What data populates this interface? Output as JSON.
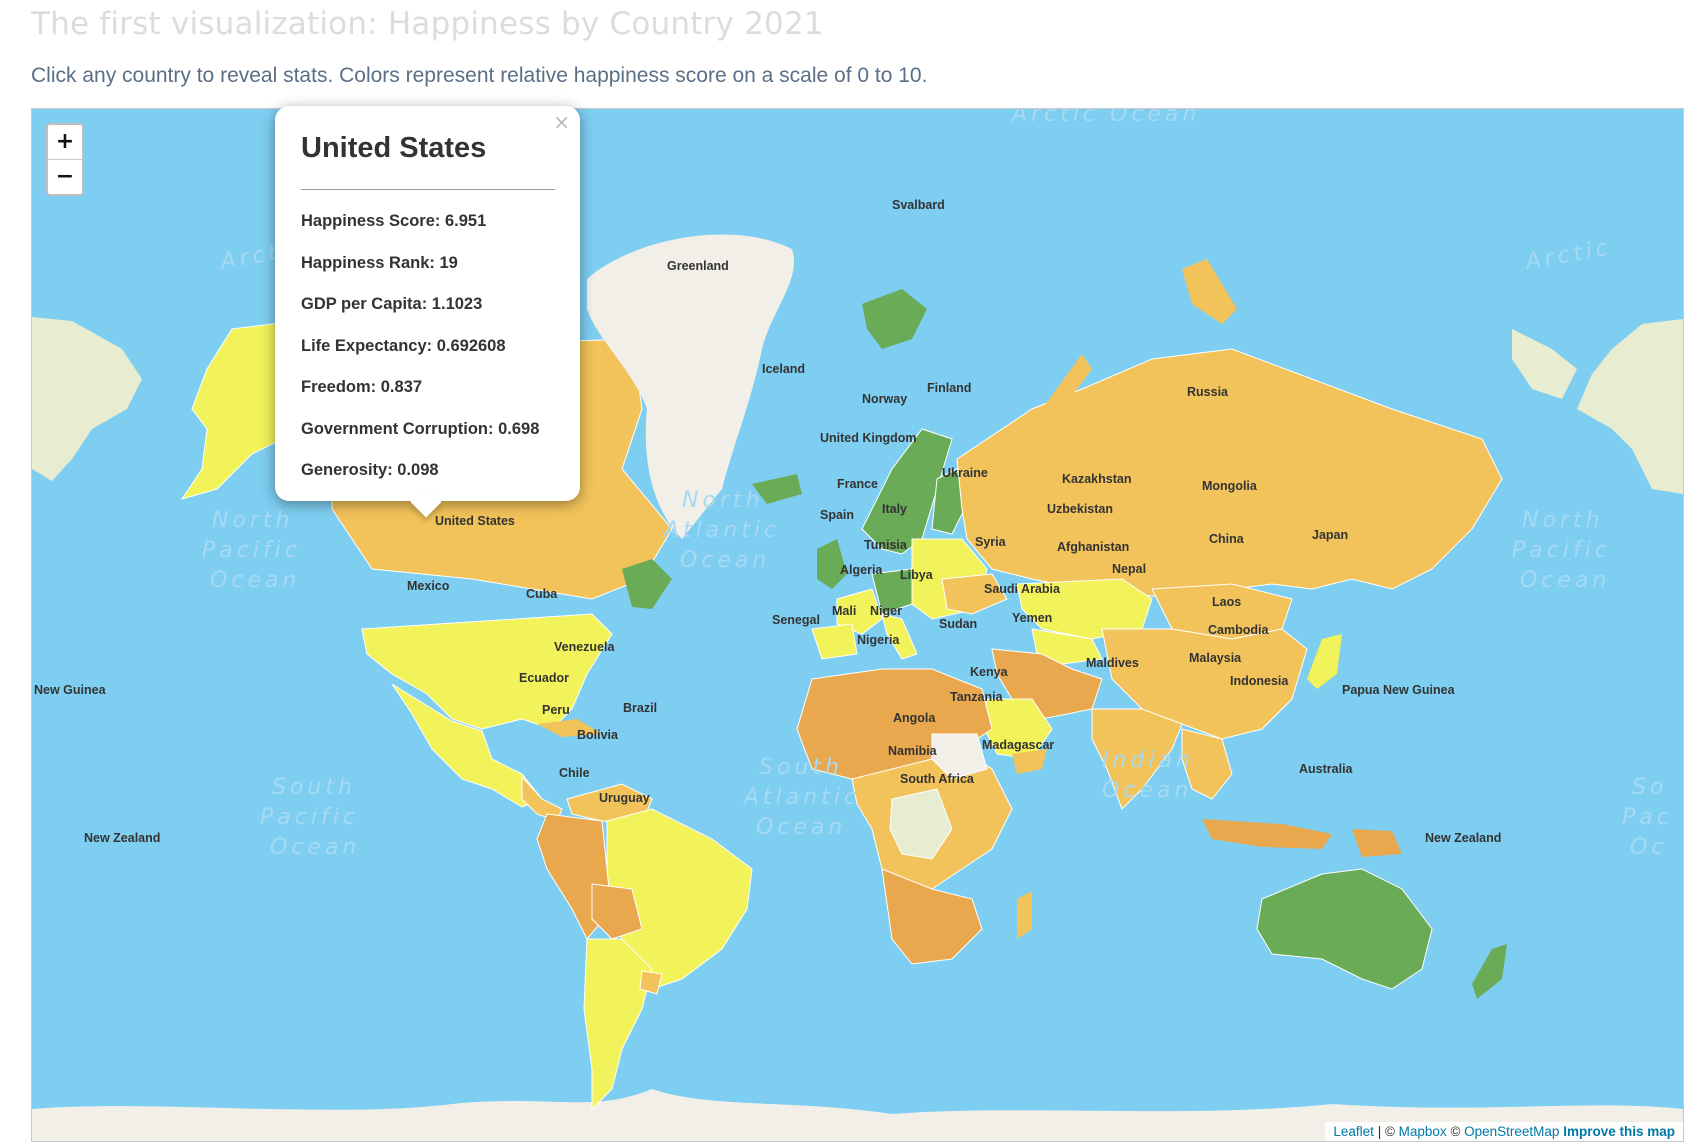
{
  "header": {
    "title": "The first visualization: Happiness by Country 2021",
    "subtitle": "Click any country to reveal stats. Colors represent relative happiness score on a scale of 0 to 10."
  },
  "map": {
    "zoom_in": "+",
    "zoom_out": "−",
    "colors": {
      "ocean": "#7ecef1",
      "highest": "#6aab57",
      "high": "#f2f25a",
      "upper_mid": "#d7e85d",
      "mid": "#f1c35a",
      "low": "#eaa84e",
      "no_data": "#f2efe9",
      "pale": "#e8ecd0"
    },
    "ocean_labels": {
      "arctic_top": "Arctic Ocean",
      "arctic_left": "Arctic",
      "arctic_right": "Arctic",
      "north_pacific_left": [
        "North",
        "Pacific",
        "Ocean"
      ],
      "north_pacific_right": [
        "North",
        "Pacific",
        "Ocean"
      ],
      "north_atlantic": [
        "North",
        "Atlantic",
        "Ocean"
      ],
      "south_pacific": [
        "South",
        "Pacific",
        "Ocean"
      ],
      "south_pacific_right": [
        "So",
        "Pac",
        "Oc"
      ],
      "south_atlantic": [
        "South",
        "Atlantic",
        "Ocean"
      ],
      "indian": [
        "Indian",
        "Ocean"
      ]
    },
    "country_labels": {
      "greenland": "Greenland",
      "svalbard": "Svalbard",
      "iceland": "Iceland",
      "norway": "Norway",
      "finland": "Finland",
      "united_kingdom": "United Kingdom",
      "france": "France",
      "spain": "Spain",
      "italy": "Italy",
      "ukraine": "Ukraine",
      "russia": "Russia",
      "kazakhstan": "Kazakhstan",
      "uzbekistan": "Uzbekistan",
      "mongolia": "Mongolia",
      "china": "China",
      "japan": "Japan",
      "afghanistan": "Afghanistan",
      "nepal": "Nepal",
      "syria": "Syria",
      "saudi_arabia": "Saudi Arabia",
      "yemen": "Yemen",
      "tunisia": "Tunisia",
      "algeria": "Algeria",
      "libya": "Libya",
      "mali": "Mali",
      "niger": "Niger",
      "senegal": "Senegal",
      "nigeria": "Nigeria",
      "sudan": "Sudan",
      "kenya": "Kenya",
      "tanzania": "Tanzania",
      "angola": "Angola",
      "namibia": "Namibia",
      "south_africa": "South Africa",
      "madagascar": "Madagascar",
      "maldives": "Maldives",
      "laos": "Laos",
      "cambodia": "Cambodia",
      "malaysia": "Malaysia",
      "indonesia": "Indonesia",
      "papua_new_guinea": "Papua New Guinea",
      "australia": "Australia",
      "new_zealand_left": "New Zealand",
      "new_zealand_right": "New Zealand",
      "new_guinea_edge": "New Guinea",
      "united_states": "United States",
      "mexico": "Mexico",
      "cuba": "Cuba",
      "venezuela": "Venezuela",
      "ecuador": "Ecuador",
      "peru": "Peru",
      "brazil": "Brazil",
      "bolivia": "Bolivia",
      "chile": "Chile",
      "uruguay": "Uruguay"
    }
  },
  "popup": {
    "close": "×",
    "country": "United States",
    "stats": [
      "Happiness Score: 6.951",
      "Happiness Rank: 19",
      "GDP per Capita: 1.1023",
      "Life Expectancy: 0.692608",
      "Freedom: 0.837",
      "Government Corruption: 0.698",
      "Generosity: 0.098"
    ]
  },
  "attribution": {
    "leaflet": "Leaflet",
    "separator": " | © ",
    "mapbox": "Mapbox",
    "copy": " © ",
    "osm": "OpenStreetMap",
    "improve": "Improve this map"
  }
}
